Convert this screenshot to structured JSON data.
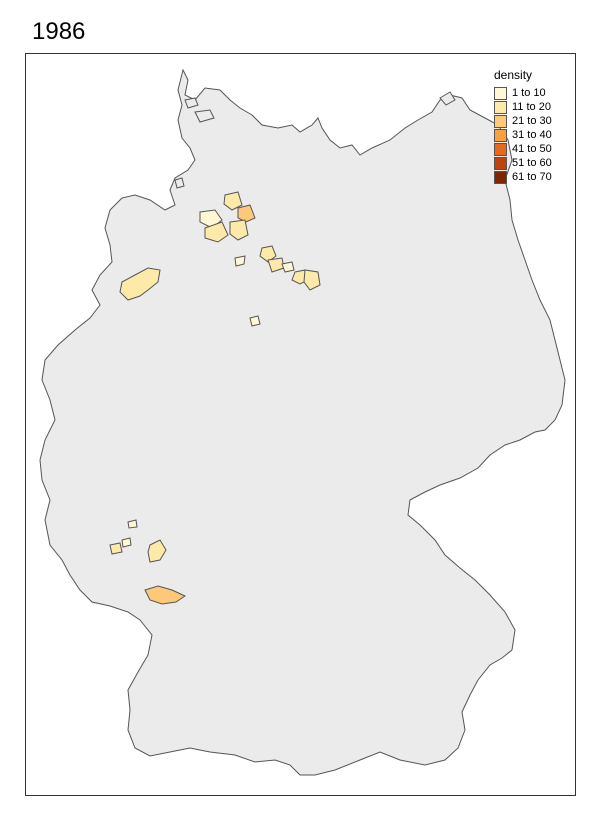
{
  "title": "1986",
  "legend": {
    "title": "density",
    "items": [
      {
        "label": "1 to 10",
        "color": "#fff7d6"
      },
      {
        "label": "11 to 20",
        "color": "#fde9a8"
      },
      {
        "label": "21 to 30",
        "color": "#fdc878"
      },
      {
        "label": "31 to 40",
        "color": "#f9a041"
      },
      {
        "label": "41 to 50",
        "color": "#e8691c"
      },
      {
        "label": "51 to 60",
        "color": "#bf440b"
      },
      {
        "label": "61 to 70",
        "color": "#7f2704"
      }
    ]
  },
  "map": {
    "country_fill": "#ebebeb",
    "border_color": "#555555",
    "regions": [
      {
        "name": "region-a",
        "class": "1 to 10"
      },
      {
        "name": "region-b",
        "class": "11 to 20"
      },
      {
        "name": "region-c",
        "class": "21 to 30"
      }
    ]
  }
}
